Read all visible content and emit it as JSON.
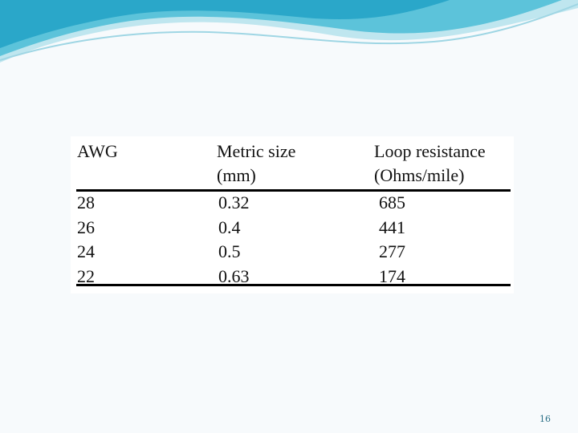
{
  "table": {
    "header": [
      [
        "AWG"
      ],
      [
        "Metric size",
        "(mm)"
      ],
      [
        "Loop resistance",
        "(Ohms/mile)"
      ]
    ],
    "rows": [
      [
        28,
        0.32,
        685
      ],
      [
        26,
        0.4,
        441
      ],
      [
        24,
        0.5,
        277
      ],
      [
        22,
        0.63,
        174
      ]
    ]
  },
  "footer": {
    "page_number": "16"
  }
}
